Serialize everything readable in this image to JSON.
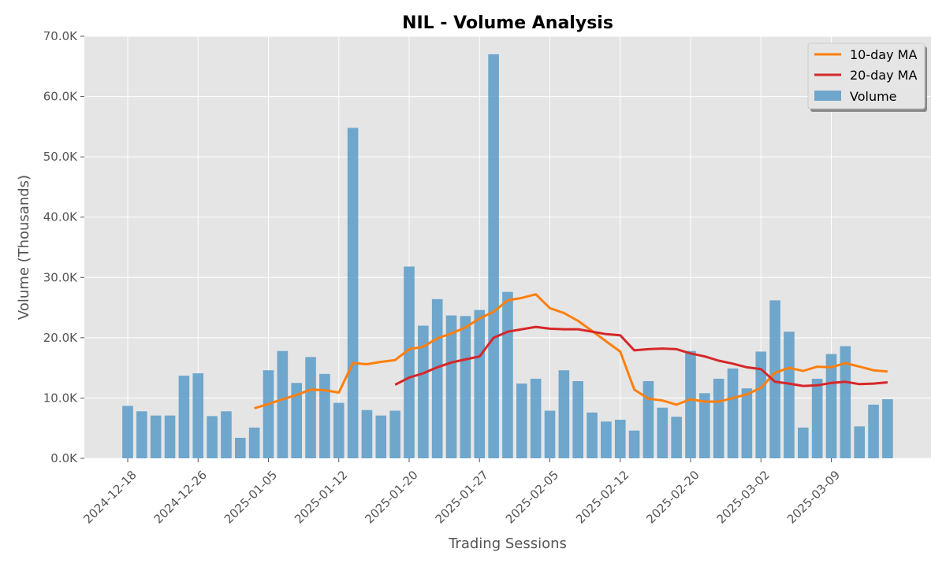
{
  "chart_data": {
    "type": "bar",
    "title": "NIL - Volume Analysis",
    "xlabel": "Trading Sessions",
    "ylabel": "Volume (Thousands)",
    "ylim": [
      0,
      70000
    ],
    "y_ticks": [
      0,
      10000,
      20000,
      30000,
      40000,
      50000,
      60000,
      70000
    ],
    "y_tick_labels": [
      "0.0K",
      "10.0K",
      "20.0K",
      "30.0K",
      "40.0K",
      "50.0K",
      "60.0K",
      "70.0K"
    ],
    "x_tick_labels": [
      {
        "index": 0,
        "label": "2024-12-18"
      },
      {
        "index": 5,
        "label": "2024-12-26"
      },
      {
        "index": 10,
        "label": "2025-01-05"
      },
      {
        "index": 15,
        "label": "2025-01-12"
      },
      {
        "index": 20,
        "label": "2025-01-20"
      },
      {
        "index": 25,
        "label": "2025-01-27"
      },
      {
        "index": 30,
        "label": "2025-02-05"
      },
      {
        "index": 35,
        "label": "2025-02-12"
      },
      {
        "index": 40,
        "label": "2025-02-20"
      },
      {
        "index": 45,
        "label": "2025-03-02"
      },
      {
        "index": 50,
        "label": "2025-03-09"
      }
    ],
    "grid": true,
    "legend_position": "top-right",
    "series": [
      {
        "name": "Volume",
        "type": "bar",
        "color": "#5b9bc8",
        "values": [
          8700,
          7800,
          7100,
          7100,
          13700,
          14100,
          7000,
          7800,
          3400,
          5100,
          14600,
          17800,
          12500,
          16800,
          14000,
          9200,
          54800,
          8000,
          7100,
          7900,
          31800,
          22000,
          26400,
          23700,
          23600,
          24600,
          67000,
          27600,
          12400,
          13200,
          7900,
          14600,
          12800,
          7600,
          6100,
          6400,
          4600,
          12800,
          8400,
          6900,
          17800,
          10800,
          13200,
          14900,
          11600,
          17700,
          26200,
          21000,
          5100,
          13200,
          17300,
          18600,
          5300,
          8900,
          9800
        ]
      },
      {
        "name": "10-day MA",
        "type": "line",
        "color": "#ff7f0e",
        "values": [
          null,
          null,
          null,
          null,
          null,
          null,
          null,
          null,
          null,
          8300,
          9000,
          9800,
          10500,
          11400,
          11300,
          10900,
          15800,
          15600,
          16000,
          16300,
          18100,
          18500,
          19900,
          20700,
          21700,
          23200,
          24300,
          26200,
          26600,
          27200,
          24900,
          24100,
          22800,
          21100,
          19400,
          17700,
          11400,
          9900,
          9600,
          8900,
          9800,
          9400,
          9400,
          10000,
          10600,
          11700,
          14200,
          15000,
          14500,
          15200,
          15100,
          15800,
          15200,
          14600,
          14400
        ]
      },
      {
        "name": "20-day MA",
        "type": "line",
        "color": "#d62728",
        "values": [
          null,
          null,
          null,
          null,
          null,
          null,
          null,
          null,
          null,
          null,
          null,
          null,
          null,
          null,
          null,
          null,
          null,
          null,
          null,
          12200,
          13400,
          14100,
          15100,
          15900,
          16400,
          16900,
          20000,
          21000,
          21400,
          21800,
          21500,
          21400,
          21400,
          21000,
          20600,
          20400,
          17900,
          18100,
          18200,
          18100,
          17400,
          16900,
          16200,
          15700,
          15100,
          14800,
          12700,
          12400,
          12000,
          12100,
          12500,
          12700,
          12300,
          12400,
          12600
        ]
      }
    ]
  }
}
